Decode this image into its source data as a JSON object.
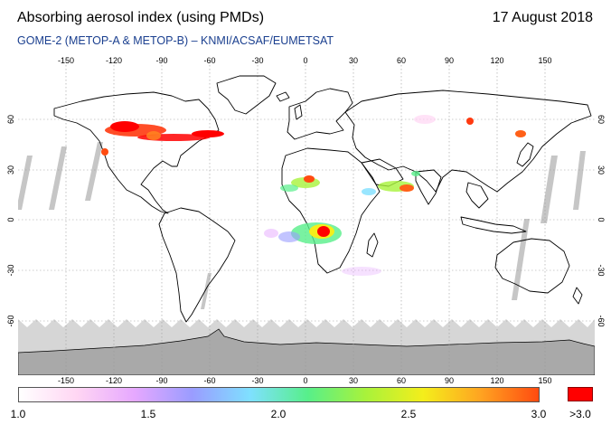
{
  "header": {
    "title": "Absorbing aerosol index (using PMDs)",
    "date": "17 August 2018",
    "subtitle": "GOME-2 (METOP-A & METOP-B)  –  KNMI/ACSAF/EUMETSAT"
  },
  "axes": {
    "lon_ticks": [
      "-150",
      "-120",
      "-90",
      "-60",
      "-30",
      "0",
      "30",
      "60",
      "90",
      "120",
      "150"
    ],
    "lat_ticks": [
      "60",
      "30",
      "0",
      "-30",
      "-60"
    ],
    "grid": true
  },
  "colorbar": {
    "labels": [
      "1.0",
      "1.5",
      "2.0",
      "2.5",
      "3.0"
    ],
    "overflow_label": ">3.0",
    "stops": [
      "#ffffff",
      "#ffd6f3",
      "#e6a8ff",
      "#9a9cff",
      "#7fe0ff",
      "#57ef8a",
      "#a8f23b",
      "#f4ee1b",
      "#ffa321",
      "#ff4b10"
    ],
    "overflow_color": "#ff0000"
  },
  "colors": {
    "land_outline": "#000000",
    "antarctica_mask": "#a9a9a9",
    "high_lat_mask": "#d6d6d6",
    "orbit_gap": "#c8c8c8"
  }
}
